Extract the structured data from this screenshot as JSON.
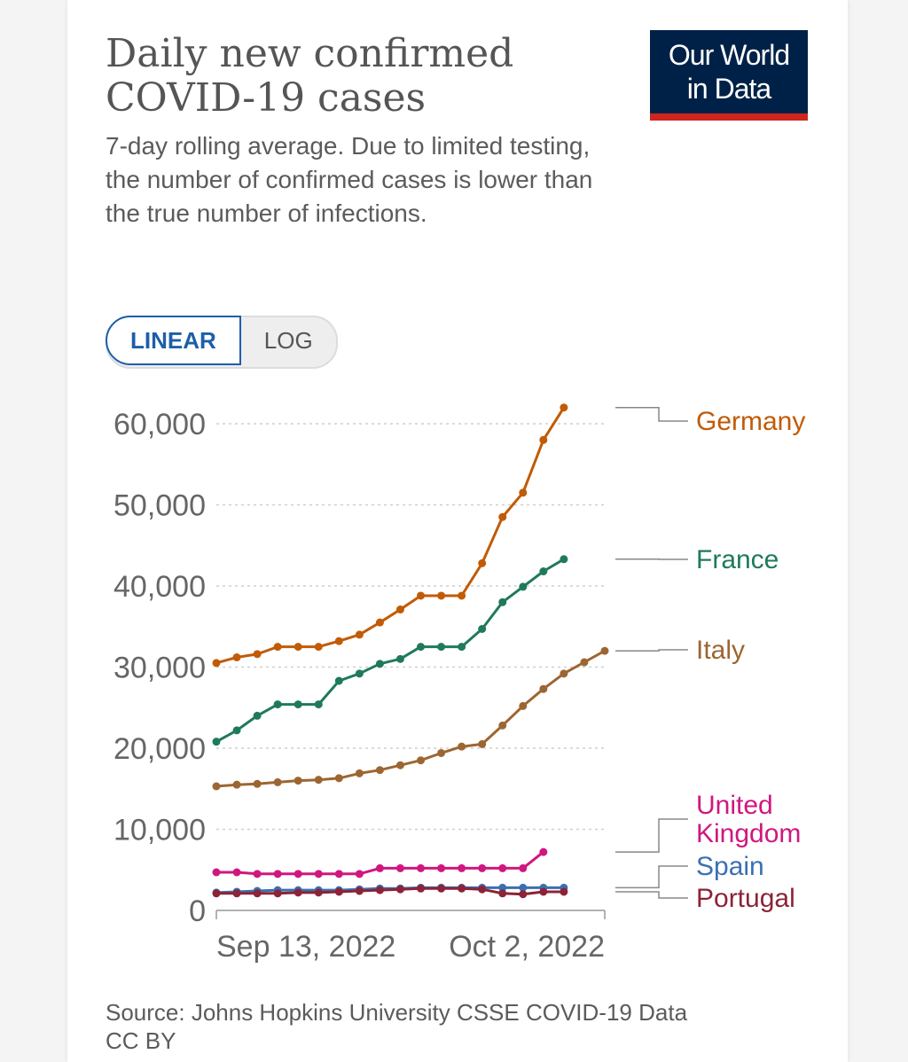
{
  "header": {
    "title": "Daily new confirmed COVID-19 cases",
    "subtitle": "7-day rolling average. Due to limited testing, the number of confirmed cases is lower than the true number of infections.",
    "logo_line1": "Our World",
    "logo_line2": "in Data"
  },
  "scale_toggle": {
    "linear_label": "LINEAR",
    "log_label": "LOG",
    "selected": "LINEAR"
  },
  "source": {
    "line1": "Source: Johns Hopkins University CSSE COVID-19 Data",
    "line2": "CC BY"
  },
  "chart_data": {
    "type": "line",
    "title": "Daily new confirmed COVID-19 cases",
    "xlabel": "",
    "ylabel": "",
    "ylim": [
      0,
      60000
    ],
    "yticks": [
      0,
      10000,
      20000,
      30000,
      40000,
      50000,
      60000
    ],
    "ytick_labels": [
      "0",
      "10,000",
      "20,000",
      "30,000",
      "40,000",
      "50,000",
      "60,000"
    ],
    "xtick_labels": [
      "Sep 13, 2022",
      "Oct 2, 2022"
    ],
    "x": [
      "Sep 13",
      "Sep 14",
      "Sep 15",
      "Sep 16",
      "Sep 17",
      "Sep 18",
      "Sep 19",
      "Sep 20",
      "Sep 21",
      "Sep 22",
      "Sep 23",
      "Sep 24",
      "Sep 25",
      "Sep 26",
      "Sep 27",
      "Sep 28",
      "Sep 29",
      "Sep 30",
      "Oct 1",
      "Oct 2"
    ],
    "series": [
      {
        "name": "Germany",
        "color": "#c15b06",
        "values": [
          30500,
          31200,
          31600,
          32500,
          32500,
          32500,
          33200,
          34000,
          35500,
          37100,
          38800,
          38800,
          38800,
          42800,
          48500,
          51500,
          58000,
          62000,
          null,
          null
        ]
      },
      {
        "name": "France",
        "color": "#1f7a5c",
        "values": [
          20800,
          22200,
          24000,
          25400,
          25400,
          25400,
          28300,
          29200,
          30400,
          31000,
          32500,
          32500,
          32500,
          34700,
          38000,
          39900,
          41800,
          43300,
          null,
          null
        ]
      },
      {
        "name": "Italy",
        "color": "#9c6632",
        "values": [
          15300,
          15500,
          15600,
          15800,
          16000,
          16100,
          16300,
          16900,
          17300,
          17900,
          18500,
          19400,
          20200,
          20500,
          22800,
          25200,
          27300,
          29200,
          30600,
          32000
        ]
      },
      {
        "name": "United Kingdom",
        "label_lines": [
          "United",
          "Kingdom"
        ],
        "color": "#d0177f",
        "values": [
          4700,
          4700,
          4500,
          4500,
          4500,
          4500,
          4500,
          4500,
          5200,
          5200,
          5200,
          5200,
          5200,
          5200,
          5200,
          5200,
          7200,
          null,
          null,
          null
        ]
      },
      {
        "name": "Spain",
        "color": "#3a70b3",
        "values": [
          2200,
          2300,
          2400,
          2500,
          2500,
          2500,
          2500,
          2600,
          2700,
          2700,
          2800,
          2800,
          2800,
          2800,
          2800,
          2800,
          2800,
          2800,
          null,
          null
        ]
      },
      {
        "name": "Portugal",
        "color": "#8c2337",
        "values": [
          2100,
          2100,
          2100,
          2100,
          2200,
          2200,
          2300,
          2400,
          2500,
          2600,
          2700,
          2700,
          2700,
          2600,
          2100,
          2000,
          2300,
          2300,
          null,
          null
        ]
      }
    ]
  }
}
